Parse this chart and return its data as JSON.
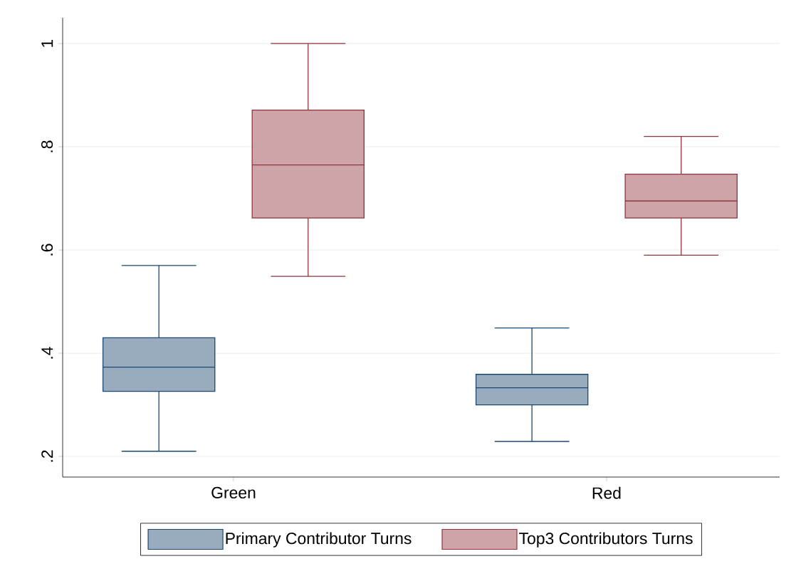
{
  "chart_data": {
    "type": "box",
    "categories": [
      "Green",
      "Red"
    ],
    "series": [
      {
        "name": "Primary Contributor Turns",
        "color": "#1a476f",
        "boxes": [
          {
            "low": 0.21,
            "q1": 0.326,
            "median": 0.373,
            "q3": 0.43,
            "high": 0.57
          },
          {
            "low": 0.229,
            "q1": 0.3,
            "median": 0.333,
            "q3": 0.359,
            "high": 0.449
          }
        ]
      },
      {
        "name": "Top3 Contributors Turns",
        "color": "#90353b",
        "boxes": [
          {
            "low": 0.549,
            "q1": 0.662,
            "median": 0.765,
            "q3": 0.871,
            "high": 1.0
          },
          {
            "low": 0.59,
            "q1": 0.662,
            "median": 0.695,
            "q3": 0.747,
            "high": 0.82
          }
        ]
      }
    ],
    "ylim": [
      0.16,
      1.05
    ],
    "yticks": [
      {
        "value": 0.2,
        "label": ".2"
      },
      {
        "value": 0.4,
        "label": ".4"
      },
      {
        "value": 0.6,
        "label": ".6"
      },
      {
        "value": 0.8,
        "label": ".8"
      },
      {
        "value": 1,
        "label": "1"
      }
    ],
    "grid": "y",
    "legend": "bottom"
  }
}
